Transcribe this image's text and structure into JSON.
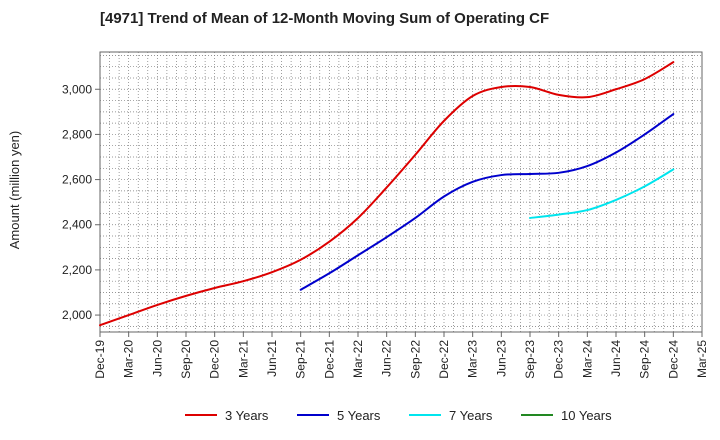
{
  "chart_data": {
    "type": "line",
    "title": "[4971]  Trend of Mean of 12-Month Moving Sum of Operating CF",
    "xlabel": "",
    "ylabel": "Amount (million yen)",
    "categories": [
      "Dec-19",
      "Mar-20",
      "Jun-20",
      "Sep-20",
      "Dec-20",
      "Mar-21",
      "Jun-21",
      "Sep-21",
      "Dec-21",
      "Mar-22",
      "Jun-22",
      "Sep-22",
      "Dec-22",
      "Mar-23",
      "Jun-23",
      "Sep-23",
      "Dec-23",
      "Mar-24",
      "Jun-24",
      "Sep-24",
      "Dec-24",
      "Mar-25"
    ],
    "y_ticks": [
      2000,
      2200,
      2400,
      2600,
      2800,
      3000
    ],
    "y_tick_labels": [
      "2,000",
      "2,200",
      "2,400",
      "2,600",
      "2,800",
      "3,000"
    ],
    "ylim": [
      1925,
      3165
    ],
    "grid": true,
    "legend_position": "bottom",
    "series": [
      {
        "name": "3 Years",
        "color": "#dd0000",
        "values": [
          1955,
          2000,
          2045,
          2085,
          2120,
          2150,
          2190,
          2245,
          2325,
          2430,
          2565,
          2710,
          2860,
          2970,
          3010,
          3010,
          2975,
          2965,
          3000,
          3045,
          3120,
          null
        ]
      },
      {
        "name": "5 Years",
        "color": "#0000cc",
        "values": [
          null,
          null,
          null,
          null,
          null,
          null,
          null,
          2112,
          2185,
          2265,
          2345,
          2430,
          2525,
          2590,
          2620,
          2625,
          2630,
          2660,
          2720,
          2800,
          2890,
          null
        ]
      },
      {
        "name": "7 Years",
        "color": "#00e5ee",
        "values": [
          null,
          null,
          null,
          null,
          null,
          null,
          null,
          null,
          null,
          null,
          null,
          null,
          null,
          null,
          null,
          2430,
          2445,
          2465,
          2510,
          2570,
          2645,
          null
        ]
      },
      {
        "name": "10 Years",
        "color": "#228822",
        "values": [
          null,
          null,
          null,
          null,
          null,
          null,
          null,
          null,
          null,
          null,
          null,
          null,
          null,
          null,
          null,
          null,
          null,
          null,
          null,
          null,
          null,
          null
        ]
      }
    ]
  }
}
